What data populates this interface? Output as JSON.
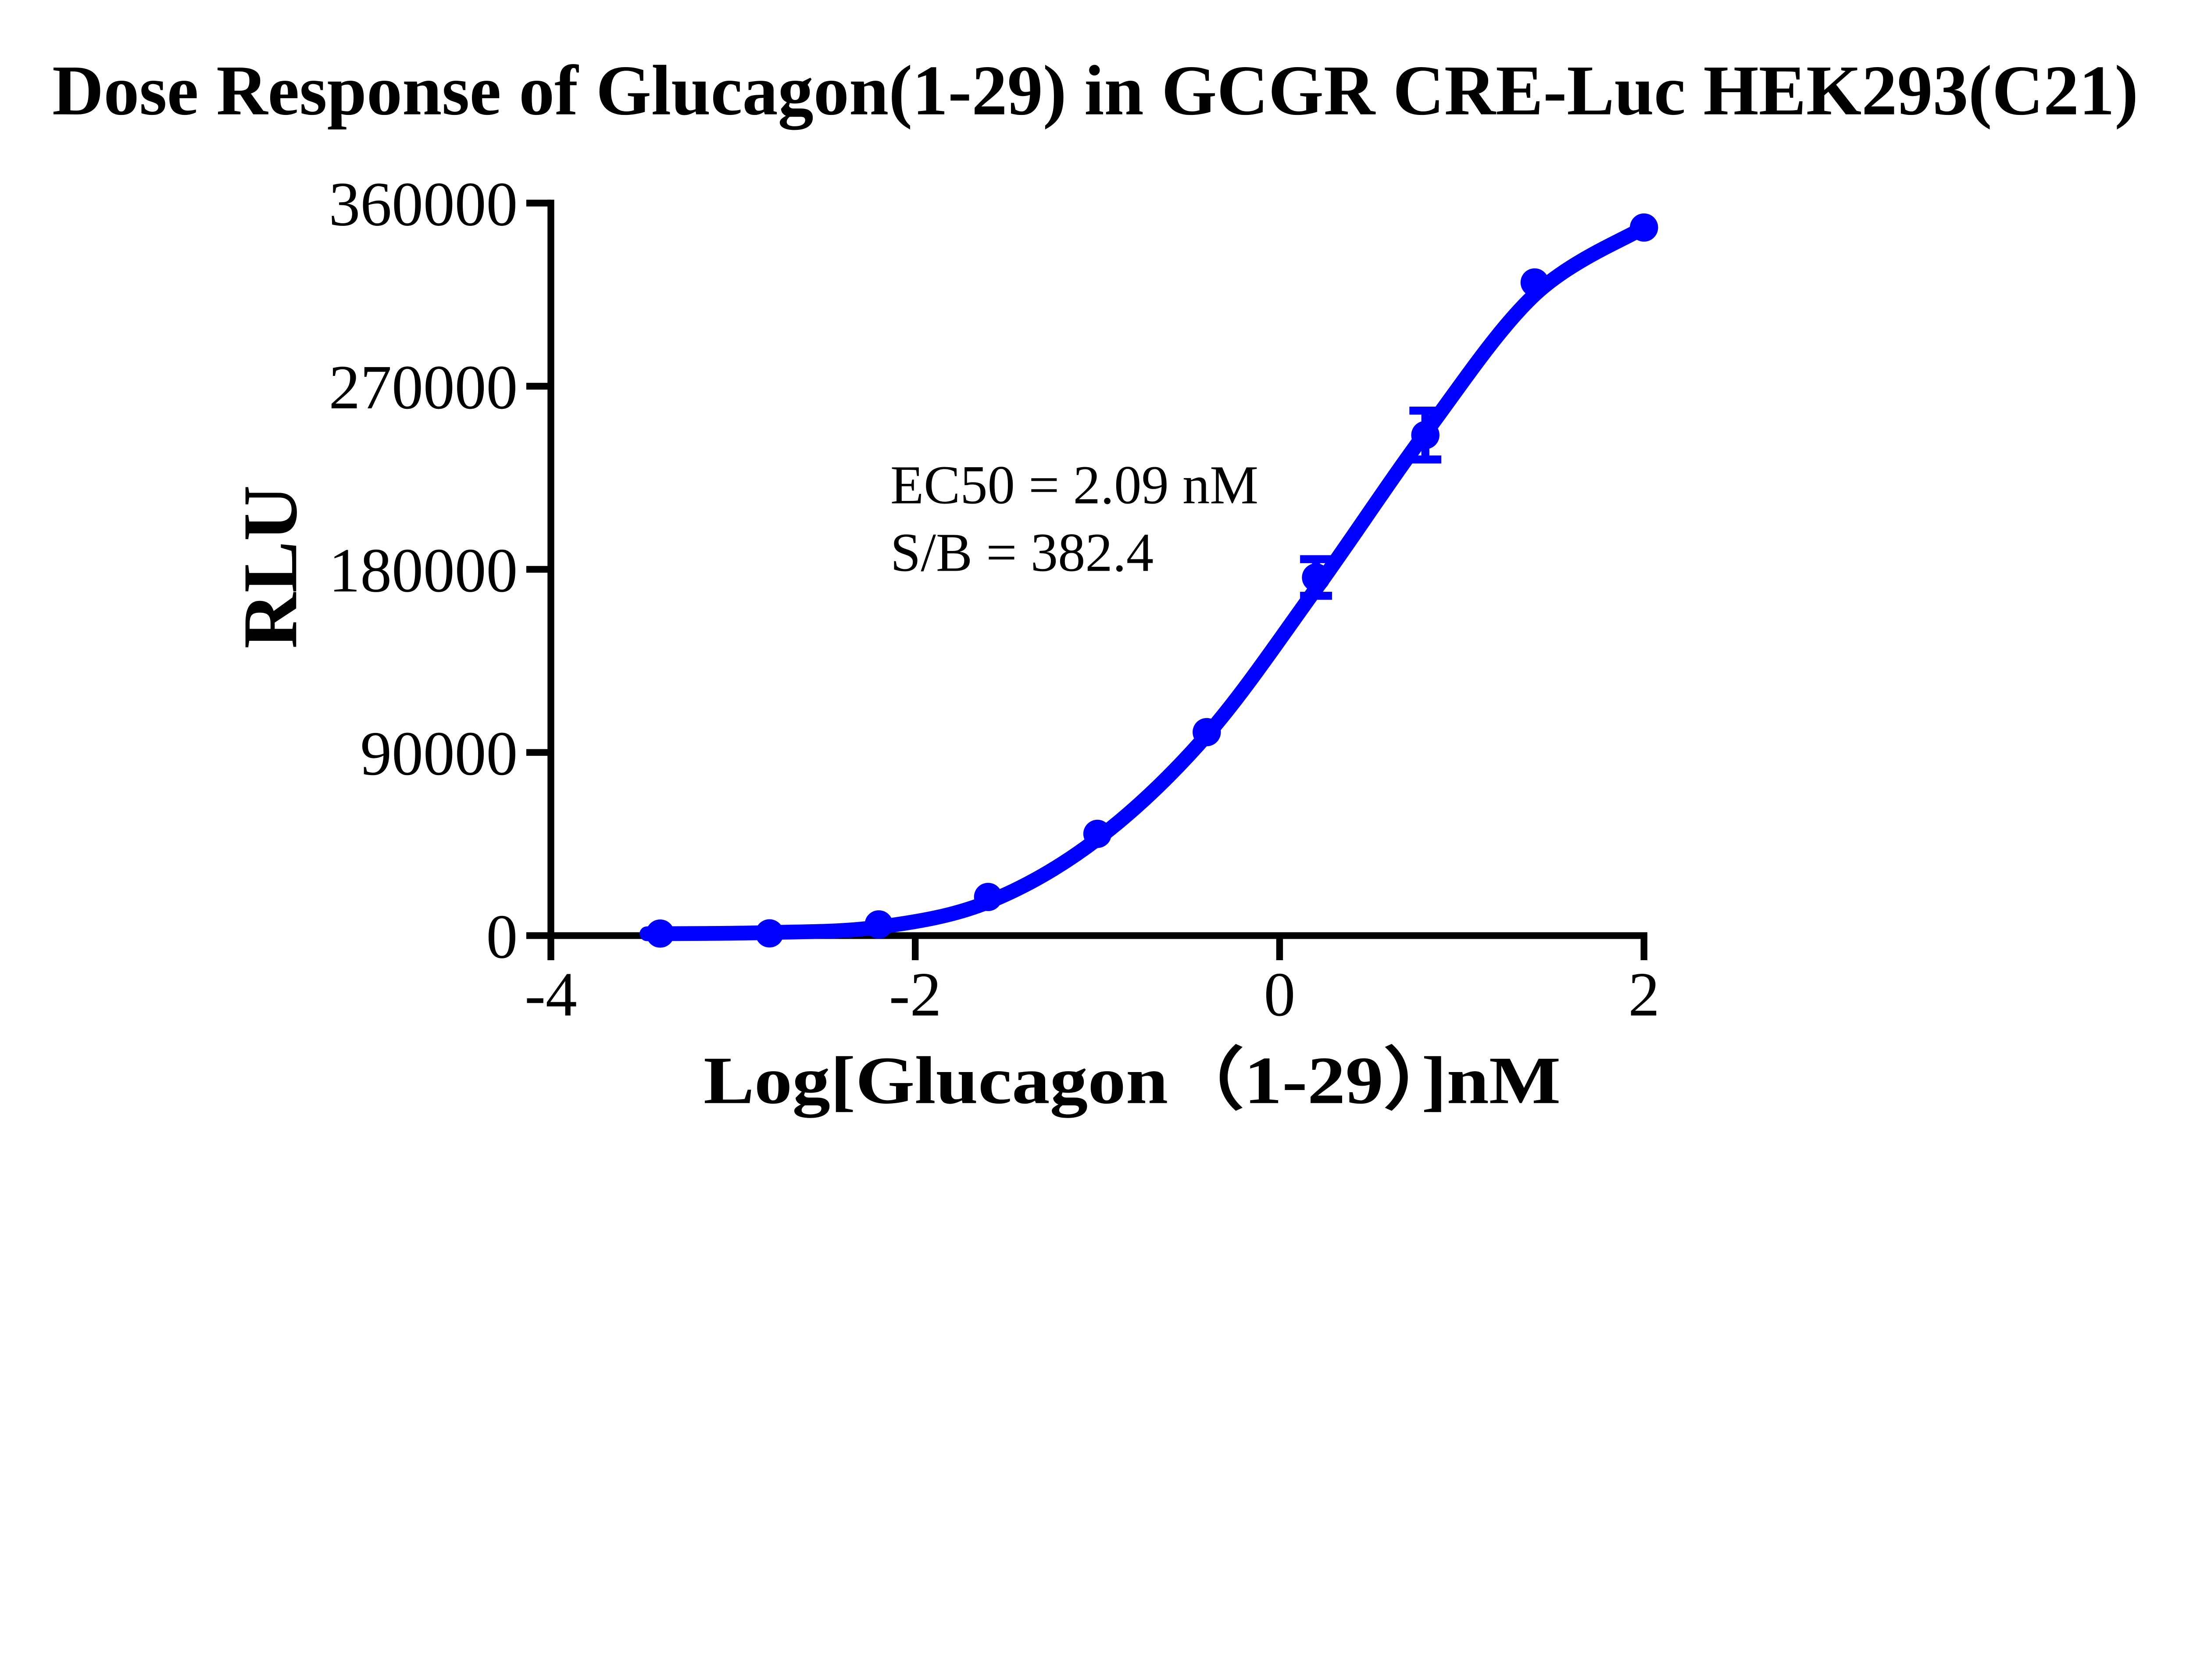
{
  "title": "Dose Response of Glucagon(1-29) in GCGR CRE-Luc HEK293(C21)",
  "annotation": {
    "ec50_line": "EC50 = 2.09 nM",
    "sb_line": "S/B = 382.4"
  },
  "chart_data": {
    "type": "scatter",
    "title": "Dose Response of Glucagon(1-29) in GCGR CRE-Luc HEK293(C21)",
    "xlabel": "Log[Glucagon（1-29）]nM",
    "ylabel": "RLU",
    "x_tick_labels": [
      "-4",
      "-2",
      "0",
      "2"
    ],
    "y_tick_labels": [
      "0",
      "90000",
      "180000",
      "270000",
      "360000"
    ],
    "xlim": [
      -4,
      2.1
    ],
    "ylim": [
      0,
      360000
    ],
    "grid": false,
    "legend": "none",
    "ec50_nM": 2.09,
    "signal_to_background": 382.4,
    "accent_color": "#0000FF",
    "axis_color": "#000000",
    "series": [
      {
        "name": "Glucagon(1-29)",
        "marker": "filled-circle",
        "color": "#0000FF",
        "x_log_nM": [
          -3.4,
          -2.8,
          -2.2,
          -1.6,
          -1.0,
          -0.4,
          0.2,
          0.8,
          1.4,
          2.0
        ],
        "rlu": [
          1000,
          1100,
          5500,
          19000,
          50000,
          100000,
          176000,
          246000,
          321000,
          348000
        ],
        "error_rlu": [
          0,
          0,
          0,
          0,
          0,
          0,
          9000,
          12000,
          0,
          0
        ]
      }
    ],
    "fit_curve": {
      "x_log_nM": [
        -3.47,
        -3.4,
        -2.8,
        -2.2,
        -1.6,
        -1.0,
        -0.4,
        0.2,
        0.8,
        1.4,
        2.0
      ],
      "rlu": [
        900,
        950,
        1500,
        4200,
        16500,
        47500,
        98500,
        170500,
        247000,
        315000,
        348000
      ]
    }
  }
}
